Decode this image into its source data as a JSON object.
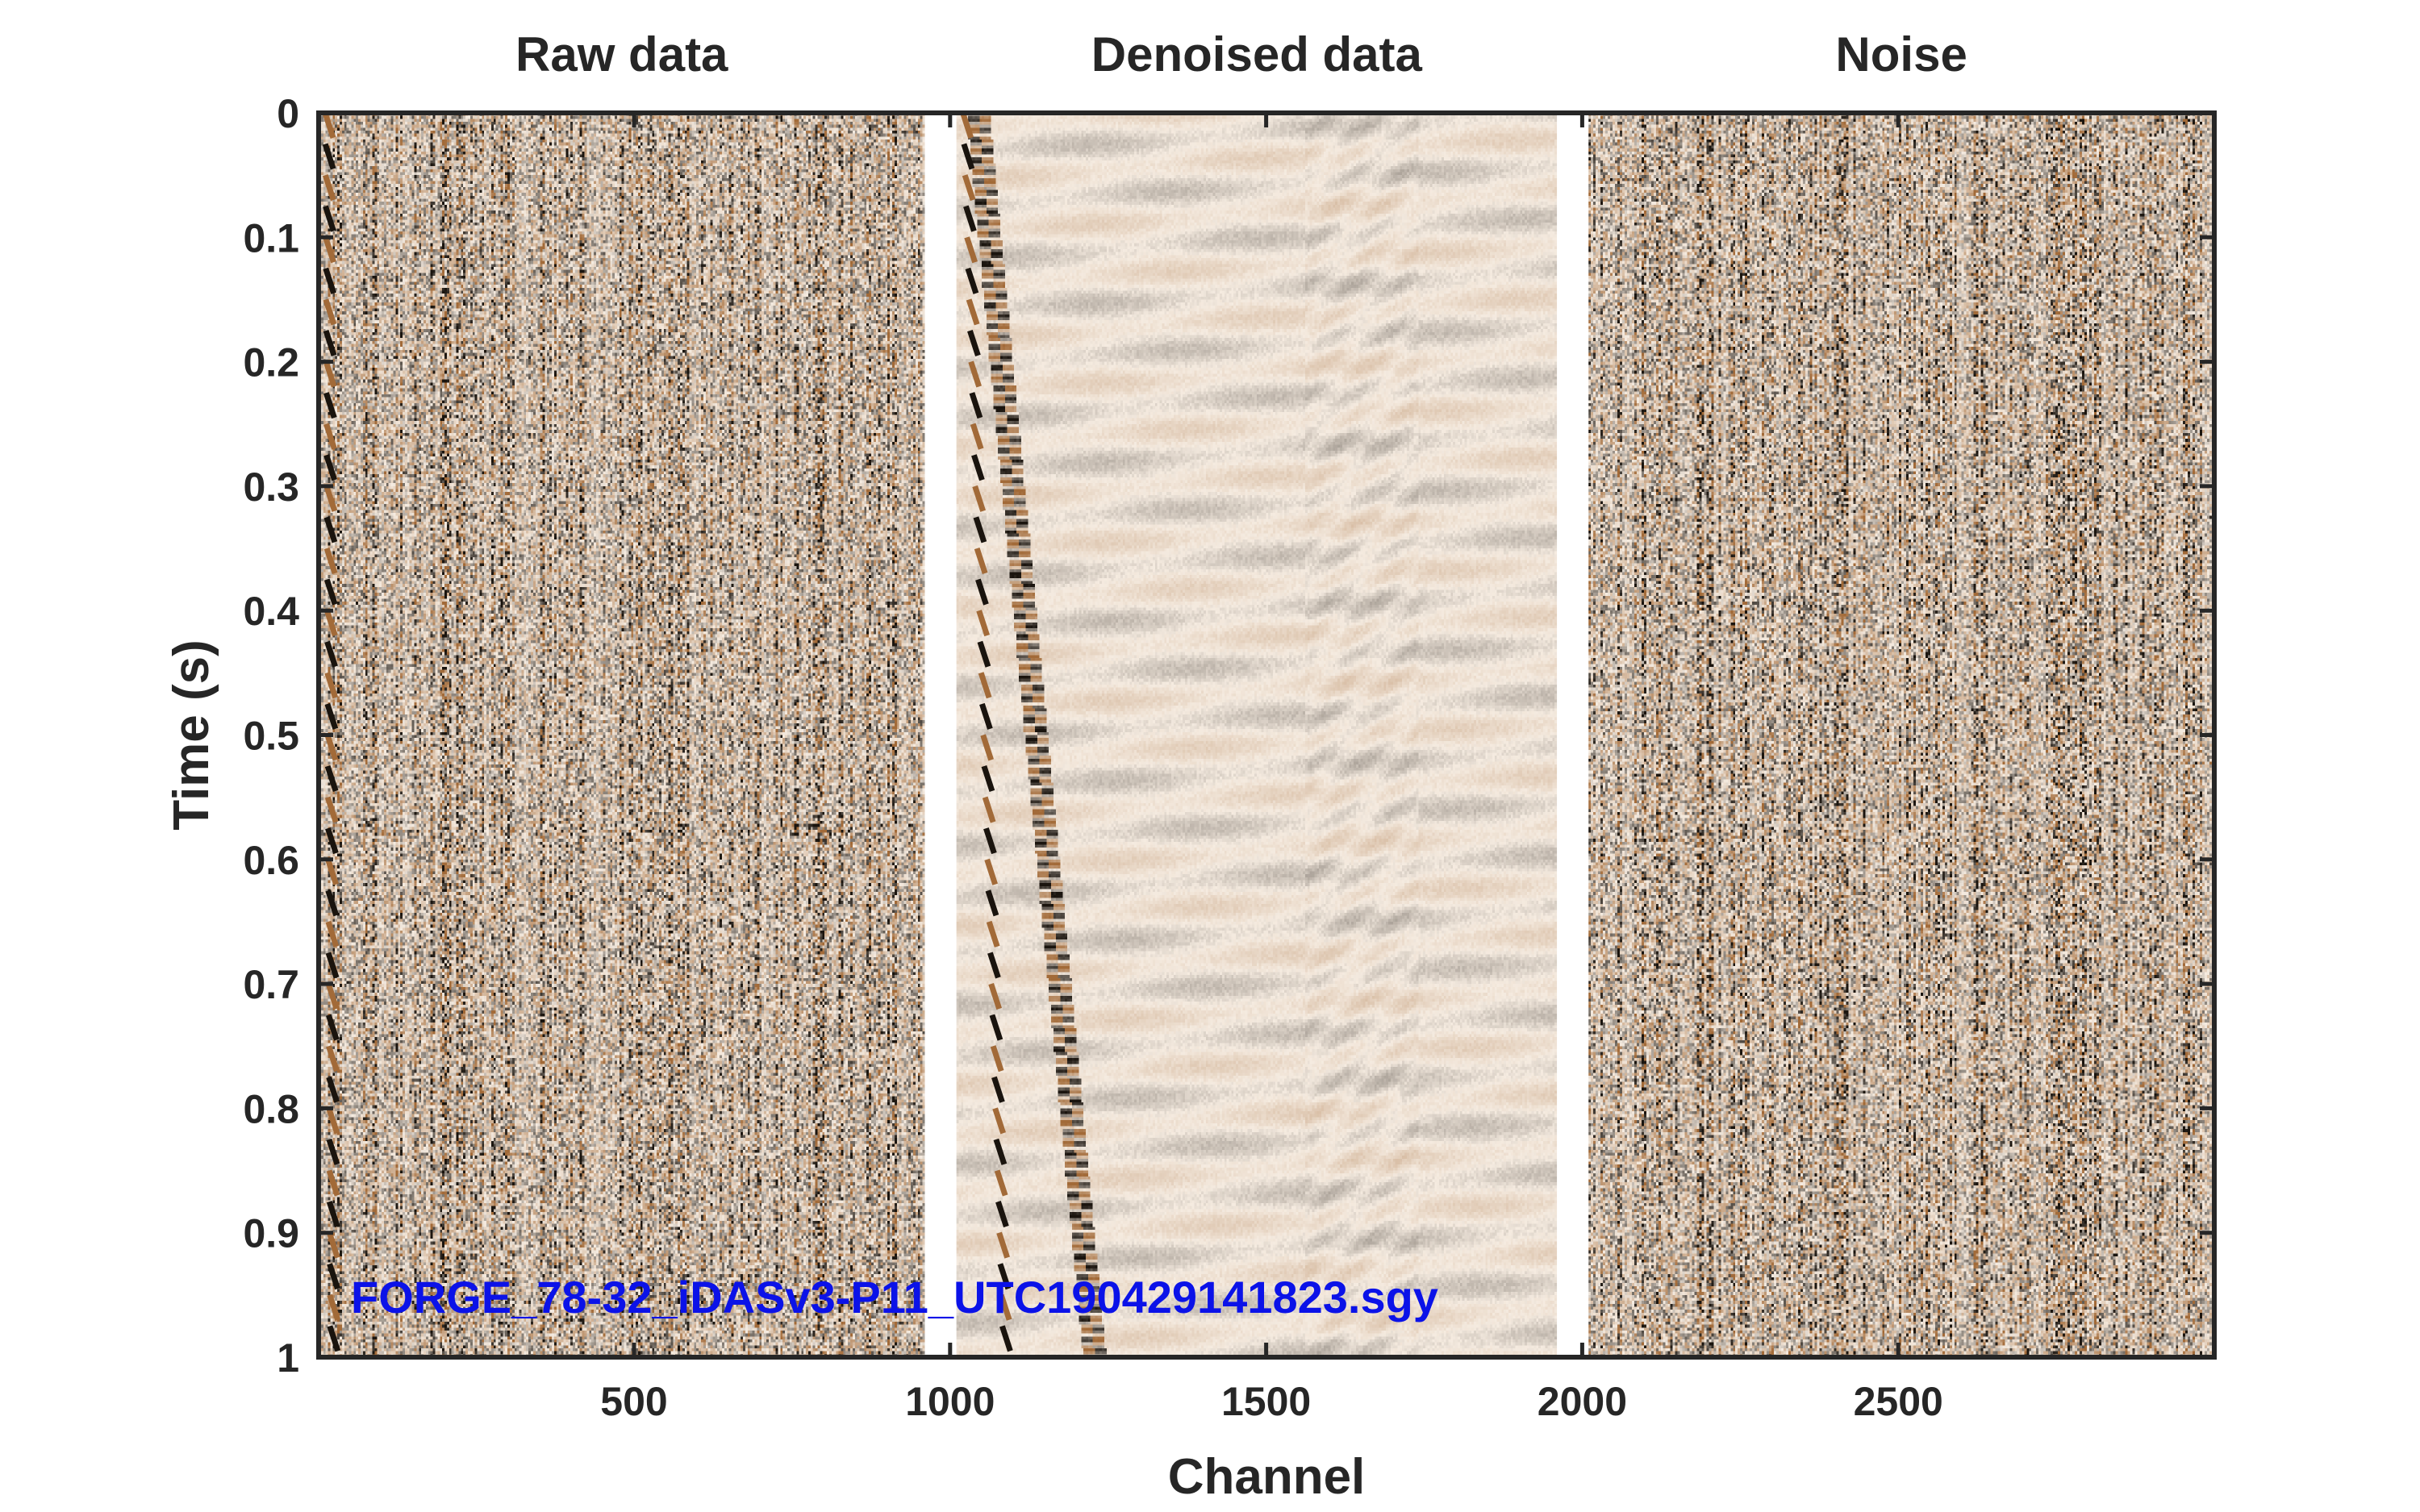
{
  "colors": {
    "axes": "#262626",
    "background": "#ffffff",
    "annotation": "#0b12e8",
    "cmap_dark": "#1a140e",
    "cmap_mid": "#a26a38",
    "cmap_light": "#f5ebe0"
  },
  "chart_data": {
    "type": "heatmap",
    "panels": [
      {
        "title": "Raw data",
        "channel_range": [
          1,
          960
        ],
        "character": "noisy"
      },
      {
        "title": "Denoised data",
        "channel_range": [
          1010,
          1960
        ],
        "character": "clean"
      },
      {
        "title": "Noise",
        "channel_range": [
          2010,
          3000
        ],
        "character": "noisy"
      }
    ],
    "xlabel": "Channel",
    "ylabel": "Time (s)",
    "xlim": [
      1,
      3000
    ],
    "ylim": [
      0,
      1
    ],
    "y_reversed": true,
    "xticks": [
      500,
      1000,
      1500,
      2000,
      2500
    ],
    "yticks": [
      0,
      0.1,
      0.2,
      0.3,
      0.4,
      0.5,
      0.6,
      0.7,
      0.8,
      0.9,
      1
    ],
    "ytick_labels": [
      "0",
      "0.1",
      "0.2",
      "0.3",
      "0.4",
      "0.5",
      "0.6",
      "0.7",
      "0.8",
      "0.9",
      "1"
    ],
    "colormap": "brown-white-black seismic",
    "annotation": "FORGE_78-32_iDASv3-P11_UTC190429141823.sgy"
  }
}
